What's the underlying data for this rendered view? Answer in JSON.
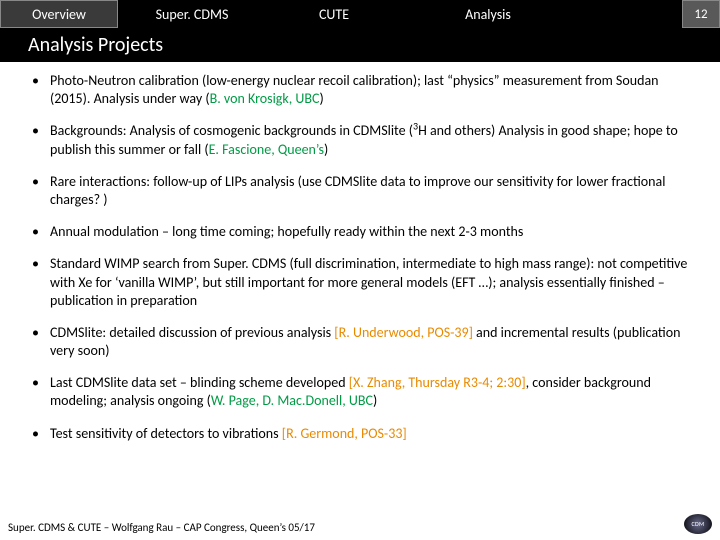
{
  "tabs": {
    "overview": "Overview",
    "supercdms": "Super. CDMS",
    "cute": "CUTE",
    "analysis": "Analysis",
    "pagenum": "12"
  },
  "title": "Analysis Projects",
  "bullets": [
    {
      "pre": "Photo-Neutron calibration (low-energy nuclear recoil calibration); last “physics” measurement from Soudan (2015). Analysis under way (",
      "hl1": "B. von Krosigk, UBC",
      "post": ")"
    },
    {
      "pre": "Backgrounds: Analysis of cosmogenic backgrounds in CDMSlite (",
      "sup": "3",
      "mid": "H and others) Analysis in good shape; hope to publish this summer or fall (",
      "hl1": "E. Fascione, Queen’s",
      "post": ")"
    },
    {
      "pre": "Rare interactions: follow-up of LIPs analysis (use CDMSlite data to improve our sensitivity for lower fractional charges? )"
    },
    {
      "pre": "Annual modulation – long time coming; hopefully ready within the next 2-3 months"
    },
    {
      "pre": "Standard WIMP search from Super. CDMS (full discrimination, intermediate to high mass range): not competitive with Xe for ‘vanilla WIMP’, but still important for more general models (EFT …); analysis essentially finished – publication in preparation"
    },
    {
      "pre": "CDMSlite: detailed discussion of previous analysis ",
      "hl2": "[R. Underwood, POS-39]",
      "post": " and incremental results (publication very soon)"
    },
    {
      "pre": "Last CDMSlite data set – blinding scheme developed ",
      "hl2": "[X. Zhang, Thursday R3-4; 2:30]",
      "mid": ", consider background modeling; analysis ongoing (",
      "hl1": "W. Page, D. Mac.Donell, UBC",
      "post": ")"
    },
    {
      "pre": "Test sensitivity of detectors to vibrations ",
      "hl2": "[R. Germond, POS-33]"
    }
  ],
  "footer": "Super. CDMS & CUTE – Wolfgang Rau – CAP Congress, Queen’s 05/17",
  "logo": "CDM"
}
